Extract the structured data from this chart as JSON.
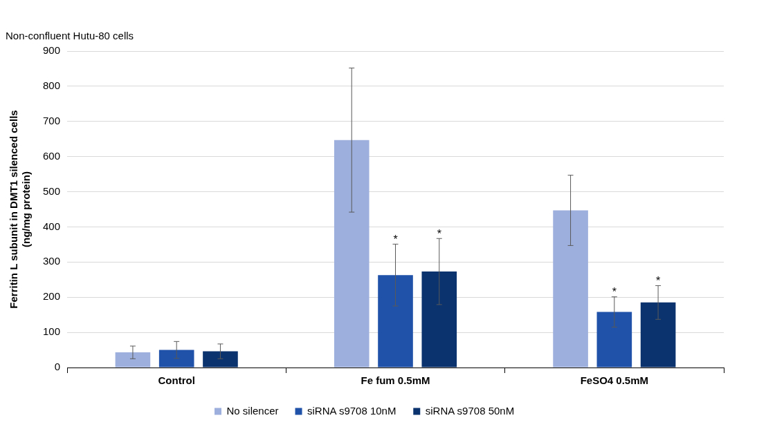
{
  "chart_data": {
    "type": "bar",
    "title": "Non-confluent Hutu-80 cells",
    "ylabel": "Ferritin L subunit in DMT1 silenced cells\n(ng/mg protein)",
    "categories": [
      "Control",
      "Fe fum 0.5mM",
      "FeSO4 0.5mM"
    ],
    "series": [
      {
        "name": "No silencer",
        "color": "#9dafdc",
        "values": [
          43,
          647,
          447
        ],
        "errors": [
          18,
          205,
          100
        ]
      },
      {
        "name": "siRNA s9708 10nM",
        "color": "#1f52a8",
        "values": [
          50,
          263,
          158
        ],
        "errors": [
          24,
          88,
          43
        ],
        "value_labels": [
          null,
          "*",
          "*"
        ]
      },
      {
        "name": "siRNA s9708 50nM",
        "color": "#0b336e",
        "values": [
          46,
          273,
          185
        ],
        "errors": [
          21,
          94,
          48
        ],
        "value_labels": [
          null,
          "*",
          "*"
        ]
      }
    ],
    "ylim": [
      0,
      900
    ],
    "yticks": [
      0,
      100,
      200,
      300,
      400,
      500,
      600,
      700,
      800,
      900
    ],
    "grid": "y",
    "legend": "bottom"
  }
}
